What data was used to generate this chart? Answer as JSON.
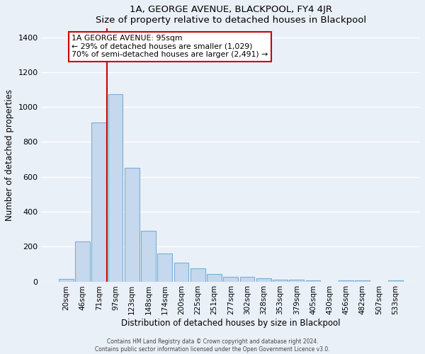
{
  "title": "1A, GEORGE AVENUE, BLACKPOOL, FY4 4JR",
  "subtitle": "Size of property relative to detached houses in Blackpool",
  "xlabel": "Distribution of detached houses by size in Blackpool",
  "ylabel": "Number of detached properties",
  "bar_labels": [
    "20sqm",
    "46sqm",
    "71sqm",
    "97sqm",
    "123sqm",
    "148sqm",
    "174sqm",
    "200sqm",
    "225sqm",
    "251sqm",
    "277sqm",
    "302sqm",
    "328sqm",
    "353sqm",
    "379sqm",
    "405sqm",
    "430sqm",
    "456sqm",
    "482sqm",
    "507sqm",
    "533sqm"
  ],
  "bar_values": [
    15,
    230,
    910,
    1075,
    650,
    290,
    160,
    108,
    75,
    42,
    25,
    25,
    18,
    12,
    12,
    5,
    0,
    5,
    5,
    0,
    5
  ],
  "bar_color": "#c5d8ed",
  "bar_edge_color": "#7bafd4",
  "ylim": [
    0,
    1450
  ],
  "yticks": [
    0,
    200,
    400,
    600,
    800,
    1000,
    1200,
    1400
  ],
  "vline_color": "#cc0000",
  "annotation_title": "1A GEORGE AVENUE: 95sqm",
  "annotation_line1": "← 29% of detached houses are smaller (1,029)",
  "annotation_line2": "70% of semi-detached houses are larger (2,491) →",
  "annotation_box_color": "#ffffff",
  "annotation_box_edge_color": "#cc0000",
  "footer1": "Contains HM Land Registry data © Crown copyright and database right 2024.",
  "footer2": "Contains public sector information licensed under the Open Government Licence v3.0.",
  "bg_color": "#eaf0f8",
  "plot_bg_color": "#eaf0f8",
  "grid_color": "#ffffff"
}
